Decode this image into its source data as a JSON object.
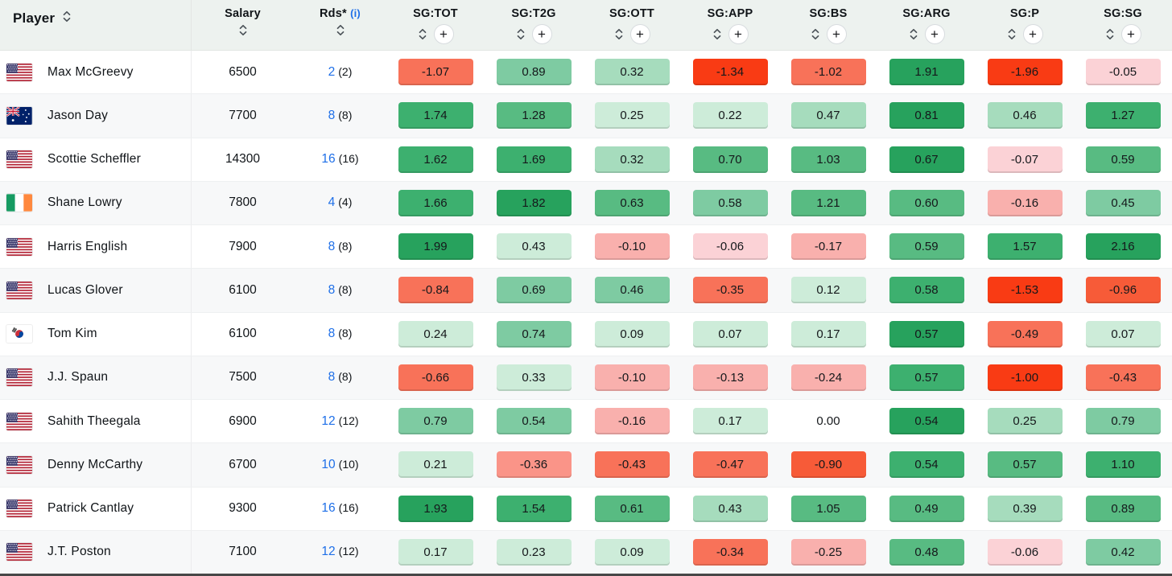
{
  "columns": {
    "player": {
      "label": "Player",
      "sortable": true
    },
    "salary": {
      "label": "Salary",
      "sortable": true
    },
    "rounds": {
      "label": "Rds*",
      "info_label": "(i)",
      "sortable": true
    },
    "sg_columns": [
      {
        "label": "SG:TOT"
      },
      {
        "label": "SG:T2G"
      },
      {
        "label": "SG:OTT"
      },
      {
        "label": "SG:APP"
      },
      {
        "label": "SG:BS"
      },
      {
        "label": "SG:ARG"
      },
      {
        "label": "SG:P"
      },
      {
        "label": "SG:SG"
      }
    ]
  },
  "icons": {
    "sort": "updown-chevrons",
    "add": "+"
  },
  "colors": {
    "header_bg": "#edf2ef",
    "row_alt_bg": "#f7f8f9",
    "link_blue": "#1e6fe8",
    "bottom_border": "#474747",
    "palette": {
      "g1": "#cdecd9",
      "g2": "#a6dcbd",
      "g3": "#7ecba2",
      "g4": "#58bb82",
      "g5": "#3db06f",
      "g6": "#27a25d",
      "r1": "#fbd2d6",
      "r2": "#f9b0ad",
      "r3": "#fa9488",
      "r4": "#f87259",
      "r5": "#f75b38",
      "r6": "#f93b14",
      "none": "transparent"
    }
  },
  "rows": [
    {
      "player": "Max McGreevy",
      "country": "us",
      "salary": "6500",
      "rounds": "2",
      "rounds_paren": "(2)",
      "sg": [
        {
          "v": "-1.07",
          "c": "r4"
        },
        {
          "v": "0.89",
          "c": "g3"
        },
        {
          "v": "0.32",
          "c": "g2"
        },
        {
          "v": "-1.34",
          "c": "r6"
        },
        {
          "v": "-1.02",
          "c": "r4"
        },
        {
          "v": "1.91",
          "c": "g6"
        },
        {
          "v": "-1.96",
          "c": "r6"
        },
        {
          "v": "-0.05",
          "c": "r1"
        }
      ]
    },
    {
      "player": "Jason Day",
      "country": "au",
      "salary": "7700",
      "rounds": "8",
      "rounds_paren": "(8)",
      "sg": [
        {
          "v": "1.74",
          "c": "g5"
        },
        {
          "v": "1.28",
          "c": "g4"
        },
        {
          "v": "0.25",
          "c": "g1"
        },
        {
          "v": "0.22",
          "c": "g1"
        },
        {
          "v": "0.47",
          "c": "g2"
        },
        {
          "v": "0.81",
          "c": "g6"
        },
        {
          "v": "0.46",
          "c": "g2"
        },
        {
          "v": "1.27",
          "c": "g5"
        }
      ]
    },
    {
      "player": "Scottie Scheffler",
      "country": "us",
      "salary": "14300",
      "rounds": "16",
      "rounds_paren": "(16)",
      "sg": [
        {
          "v": "1.62",
          "c": "g5"
        },
        {
          "v": "1.69",
          "c": "g5"
        },
        {
          "v": "0.32",
          "c": "g2"
        },
        {
          "v": "0.70",
          "c": "g4"
        },
        {
          "v": "1.03",
          "c": "g4"
        },
        {
          "v": "0.67",
          "c": "g6"
        },
        {
          "v": "-0.07",
          "c": "r1"
        },
        {
          "v": "0.59",
          "c": "g4"
        }
      ]
    },
    {
      "player": "Shane Lowry",
      "country": "ie",
      "salary": "7800",
      "rounds": "4",
      "rounds_paren": "(4)",
      "sg": [
        {
          "v": "1.66",
          "c": "g5"
        },
        {
          "v": "1.82",
          "c": "g6"
        },
        {
          "v": "0.63",
          "c": "g4"
        },
        {
          "v": "0.58",
          "c": "g3"
        },
        {
          "v": "1.21",
          "c": "g4"
        },
        {
          "v": "0.60",
          "c": "g4"
        },
        {
          "v": "-0.16",
          "c": "r2"
        },
        {
          "v": "0.45",
          "c": "g3"
        }
      ]
    },
    {
      "player": "Harris English",
      "country": "us",
      "salary": "7900",
      "rounds": "8",
      "rounds_paren": "(8)",
      "sg": [
        {
          "v": "1.99",
          "c": "g6"
        },
        {
          "v": "0.43",
          "c": "g1"
        },
        {
          "v": "-0.10",
          "c": "r2"
        },
        {
          "v": "-0.06",
          "c": "r1"
        },
        {
          "v": "-0.17",
          "c": "r2"
        },
        {
          "v": "0.59",
          "c": "g4"
        },
        {
          "v": "1.57",
          "c": "g5"
        },
        {
          "v": "2.16",
          "c": "g6"
        }
      ]
    },
    {
      "player": "Lucas Glover",
      "country": "us",
      "salary": "6100",
      "rounds": "8",
      "rounds_paren": "(8)",
      "sg": [
        {
          "v": "-0.84",
          "c": "r4"
        },
        {
          "v": "0.69",
          "c": "g3"
        },
        {
          "v": "0.46",
          "c": "g3"
        },
        {
          "v": "-0.35",
          "c": "r4"
        },
        {
          "v": "0.12",
          "c": "g1"
        },
        {
          "v": "0.58",
          "c": "g5"
        },
        {
          "v": "-1.53",
          "c": "r6"
        },
        {
          "v": "-0.96",
          "c": "r5"
        }
      ]
    },
    {
      "player": "Tom Kim",
      "country": "kr",
      "salary": "6100",
      "rounds": "8",
      "rounds_paren": "(8)",
      "sg": [
        {
          "v": "0.24",
          "c": "g1"
        },
        {
          "v": "0.74",
          "c": "g3"
        },
        {
          "v": "0.09",
          "c": "g1"
        },
        {
          "v": "0.07",
          "c": "g1"
        },
        {
          "v": "0.17",
          "c": "g1"
        },
        {
          "v": "0.57",
          "c": "g6"
        },
        {
          "v": "-0.49",
          "c": "r4"
        },
        {
          "v": "0.07",
          "c": "g1"
        }
      ]
    },
    {
      "player": "J.J. Spaun",
      "country": "us",
      "salary": "7500",
      "rounds": "8",
      "rounds_paren": "(8)",
      "sg": [
        {
          "v": "-0.66",
          "c": "r4"
        },
        {
          "v": "0.33",
          "c": "g1"
        },
        {
          "v": "-0.10",
          "c": "r2"
        },
        {
          "v": "-0.13",
          "c": "r2"
        },
        {
          "v": "-0.24",
          "c": "r2"
        },
        {
          "v": "0.57",
          "c": "g5"
        },
        {
          "v": "-1.00",
          "c": "r6"
        },
        {
          "v": "-0.43",
          "c": "r4"
        }
      ]
    },
    {
      "player": "Sahith Theegala",
      "country": "us",
      "salary": "6900",
      "rounds": "12",
      "rounds_paren": "(12)",
      "sg": [
        {
          "v": "0.79",
          "c": "g3"
        },
        {
          "v": "0.54",
          "c": "g3"
        },
        {
          "v": "-0.16",
          "c": "r2"
        },
        {
          "v": "0.17",
          "c": "g1"
        },
        {
          "v": "0.00",
          "c": "none"
        },
        {
          "v": "0.54",
          "c": "g6"
        },
        {
          "v": "0.25",
          "c": "g2"
        },
        {
          "v": "0.79",
          "c": "g3"
        }
      ]
    },
    {
      "player": "Denny McCarthy",
      "country": "us",
      "salary": "6700",
      "rounds": "10",
      "rounds_paren": "(10)",
      "sg": [
        {
          "v": "0.21",
          "c": "g1"
        },
        {
          "v": "-0.36",
          "c": "r3"
        },
        {
          "v": "-0.43",
          "c": "r4"
        },
        {
          "v": "-0.47",
          "c": "r4"
        },
        {
          "v": "-0.90",
          "c": "r5"
        },
        {
          "v": "0.54",
          "c": "g5"
        },
        {
          "v": "0.57",
          "c": "g4"
        },
        {
          "v": "1.10",
          "c": "g5"
        }
      ]
    },
    {
      "player": "Patrick Cantlay",
      "country": "us",
      "salary": "9300",
      "rounds": "16",
      "rounds_paren": "(16)",
      "sg": [
        {
          "v": "1.93",
          "c": "g6"
        },
        {
          "v": "1.54",
          "c": "g5"
        },
        {
          "v": "0.61",
          "c": "g4"
        },
        {
          "v": "0.43",
          "c": "g2"
        },
        {
          "v": "1.05",
          "c": "g4"
        },
        {
          "v": "0.49",
          "c": "g4"
        },
        {
          "v": "0.39",
          "c": "g2"
        },
        {
          "v": "0.89",
          "c": "g4"
        }
      ]
    },
    {
      "player": "J.T. Poston",
      "country": "us",
      "salary": "7100",
      "rounds": "12",
      "rounds_paren": "(12)",
      "sg": [
        {
          "v": "0.17",
          "c": "g1"
        },
        {
          "v": "0.23",
          "c": "g1"
        },
        {
          "v": "0.09",
          "c": "g1"
        },
        {
          "v": "-0.34",
          "c": "r4"
        },
        {
          "v": "-0.25",
          "c": "r2"
        },
        {
          "v": "0.48",
          "c": "g4"
        },
        {
          "v": "-0.06",
          "c": "r1"
        },
        {
          "v": "0.42",
          "c": "g3"
        }
      ]
    }
  ]
}
